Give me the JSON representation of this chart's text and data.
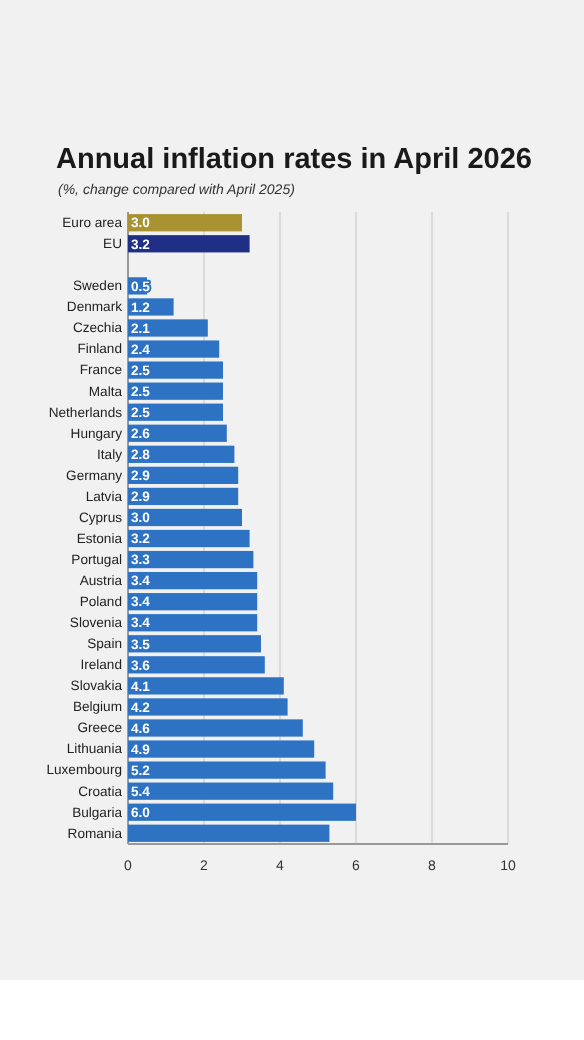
{
  "chart_data": {
    "type": "bar",
    "orientation": "horizontal",
    "title": "Annual inflation rates in April 2026",
    "subtitle": "(%, change compared with April 2025)",
    "categories": [
      "Euro area",
      "EU",
      null,
      "Sweden",
      "Denmark",
      "Czechia",
      "Finland",
      "France",
      "Malta",
      "Netherlands",
      "Hungary",
      "Italy",
      "Germany",
      "Latvia",
      "Cyprus",
      "Estonia",
      "Portugal",
      "Austria",
      "Poland",
      "Slovenia",
      "Spain",
      "Ireland",
      "Slovakia",
      "Belgium",
      "Greece",
      "Lithuania",
      "Luxembourg",
      "Croatia",
      "Bulgaria",
      "Romania"
    ],
    "values": [
      3.0,
      3.2,
      null,
      0.5,
      1.2,
      2.1,
      2.4,
      2.5,
      2.5,
      2.5,
      2.6,
      2.8,
      2.9,
      2.9,
      3.0,
      3.2,
      3.3,
      3.4,
      3.4,
      3.4,
      3.5,
      3.6,
      4.1,
      4.2,
      4.6,
      4.9,
      5.2,
      5.4,
      6.0,
      5.3
    ],
    "value_labels": [
      "3.0",
      "3.2",
      null,
      "0.5",
      "1.2",
      "2.1",
      "2.4",
      "2.5",
      "2.5",
      "2.5",
      "2.6",
      "2.8",
      "2.9",
      "2.9",
      "3.0",
      "3.2",
      "3.3",
      "3.4",
      "3.4",
      "3.4",
      "3.5",
      "3.6",
      "4.1",
      "4.2",
      "4.6",
      "4.9",
      "5.2",
      "5.4",
      "6.0",
      null
    ],
    "colors": [
      "#a89232",
      "#1f2f86",
      null,
      "#2e72c4",
      "#2e72c4",
      "#2e72c4",
      "#2e72c4",
      "#2e72c4",
      "#2e72c4",
      "#2e72c4",
      "#2e72c4",
      "#2e72c4",
      "#2e72c4",
      "#2e72c4",
      "#2e72c4",
      "#2e72c4",
      "#2e72c4",
      "#2e72c4",
      "#2e72c4",
      "#2e72c4",
      "#2e72c4",
      "#2e72c4",
      "#2e72c4",
      "#2e72c4",
      "#2e72c4",
      "#2e72c4",
      "#2e72c4",
      "#2e72c4",
      "#2e72c4",
      "#2e72c4"
    ],
    "xlim": [
      0,
      10
    ],
    "xticks": [
      0,
      2,
      4,
      6,
      8,
      10
    ],
    "grid": "x"
  }
}
